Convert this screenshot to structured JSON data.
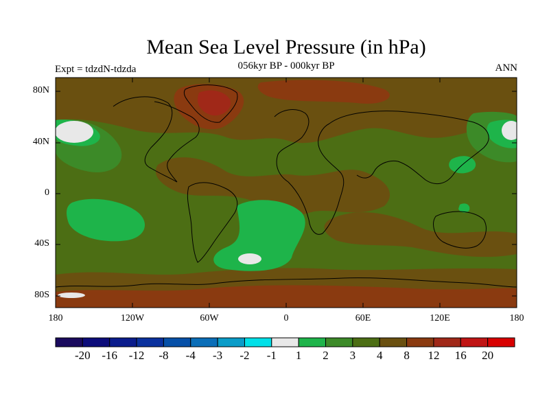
{
  "title": "Mean Sea Level Pressure (in hPa)",
  "subtitle": "056kyr BP - 000kyr BP",
  "left_label": "Expt = tdzdN-tdzda",
  "right_label": "ANN",
  "lat_ticks": [
    "80N",
    "40N",
    "0",
    "40S",
    "80S"
  ],
  "lon_ticks": [
    "180",
    "120W",
    "60W",
    "0",
    "60E",
    "120E",
    "180"
  ],
  "colorbar": {
    "labels": [
      "-20",
      "-16",
      "-12",
      "-8",
      "-4",
      "-3",
      "-2",
      "-1",
      "1",
      "2",
      "3",
      "4",
      "8",
      "12",
      "16",
      "20"
    ],
    "colors": [
      "#1a0a5e",
      "#0c0c7a",
      "#0a1c8c",
      "#0a319e",
      "#0650a8",
      "#0a6eb8",
      "#0a9cc8",
      "#00e0e8",
      "#e8e8e8",
      "#1eb44a",
      "#3c8a28",
      "#4c6e14",
      "#6a5010",
      "#8a3a10",
      "#a02818",
      "#c01414",
      "#d80000"
    ]
  },
  "map_colors": {
    "band_4_8": "#6a5010",
    "band_3_4": "#4c6e14",
    "band_2_3": "#3c8a28",
    "band_1_2": "#1eb44a",
    "band_m1_1": "#e8e8e8",
    "band_8_12": "#8a3a10",
    "band_12_16": "#a02818"
  }
}
